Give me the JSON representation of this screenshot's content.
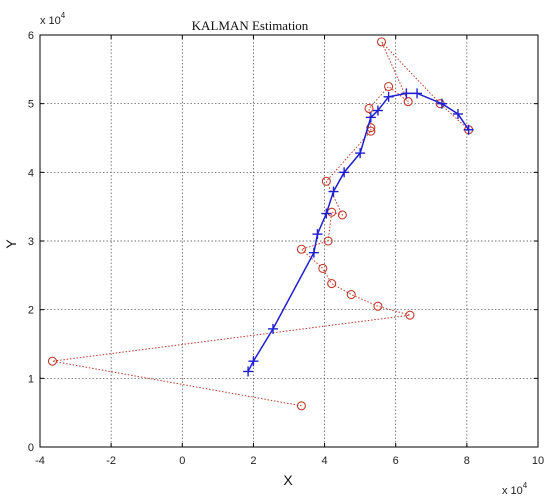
{
  "chart_data": {
    "type": "line",
    "title": "KALMAN Estimation",
    "xlabel": "X",
    "ylabel": "Y",
    "x_exponent_label": {
      "base": "x 10",
      "power": "4"
    },
    "y_exponent_label": {
      "base": "x 10",
      "power": "4"
    },
    "xlim": [
      -4,
      10
    ],
    "ylim": [
      0,
      6
    ],
    "x_ticks": [
      "-4",
      "-2",
      "0",
      "2",
      "4",
      "6",
      "8",
      "10"
    ],
    "y_ticks": [
      "0",
      "1",
      "2",
      "3",
      "4",
      "5",
      "6"
    ],
    "grid": true,
    "colors": {
      "estimate": "#1f1fcf",
      "measurement": "#c0392b"
    },
    "series": [
      {
        "marker": "plus",
        "style": "solid",
        "points": [
          [
            1.85,
            1.1
          ],
          [
            2.0,
            1.25
          ],
          [
            2.55,
            1.72
          ],
          [
            3.7,
            2.83
          ],
          [
            3.8,
            3.1
          ],
          [
            4.05,
            3.4
          ],
          [
            4.25,
            3.72
          ],
          [
            4.55,
            4.0
          ],
          [
            5.0,
            4.28
          ],
          [
            5.3,
            4.8
          ],
          [
            5.5,
            4.9
          ],
          [
            5.8,
            5.1
          ],
          [
            6.3,
            5.15
          ],
          [
            6.6,
            5.15
          ],
          [
            7.3,
            5.0
          ],
          [
            7.75,
            4.85
          ],
          [
            8.05,
            4.62
          ]
        ]
      },
      {
        "marker": "circle",
        "style": "dotted",
        "points": [
          [
            3.35,
            0.6
          ],
          [
            -3.65,
            1.25
          ],
          [
            6.4,
            1.92
          ],
          [
            5.5,
            2.05
          ],
          [
            4.75,
            2.22
          ],
          [
            4.2,
            2.38
          ],
          [
            3.95,
            2.6
          ],
          [
            3.35,
            2.88
          ],
          [
            4.1,
            3.0
          ],
          [
            4.2,
            3.42
          ],
          [
            4.5,
            3.38
          ],
          [
            4.05,
            3.87
          ],
          [
            5.3,
            4.6
          ],
          [
            5.3,
            4.65
          ],
          [
            5.25,
            4.93
          ],
          [
            5.8,
            5.25
          ],
          [
            6.35,
            5.03
          ],
          [
            5.6,
            5.9
          ],
          [
            7.25,
            5.0
          ],
          [
            8.05,
            4.62
          ]
        ]
      }
    ]
  }
}
